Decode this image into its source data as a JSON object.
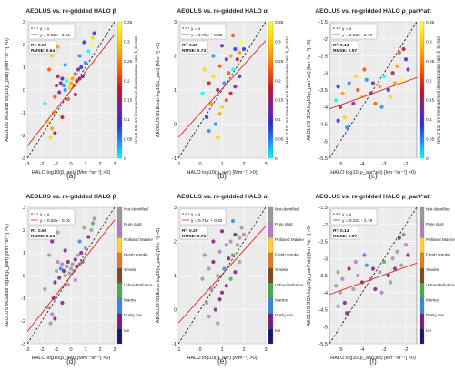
{
  "figure": {
    "colorbar_ticks": [
      "0.35",
      "0.3",
      "0.25",
      "0.2",
      "0.15",
      "0.1",
      "0.05",
      "0"
    ],
    "colorbar_title": "HALO 532 nm linear aerosol depolarization ratio δ_lin,532",
    "aerosol_classes": [
      "Not identified",
      "Pure dust",
      "Polluted Marine",
      "Fresh smoke",
      "Smoke",
      "Urban/Pollution",
      "Marine",
      "Dusty mix",
      "Ice"
    ],
    "aerosol_colors": [
      "#9a9a9a",
      "#b07cc6",
      "#ffcf33",
      "#e07b21",
      "#7a4b1c",
      "#4ea94d",
      "#3a86d8",
      "#7b1e7a",
      "#16166e"
    ]
  },
  "chart_data": [
    {
      "type": "scatter",
      "label": "(a)",
      "title": "AEOLUS vs. re-gridded HALO β",
      "xlabel": "HALO log10(β_aer) [Mm⁻¹sr⁻¹] >0)",
      "ylabel": "AEOLUS MLEsub log10(β_part) [Mm⁻¹sr⁻¹] >0)",
      "xlim": [
        -3,
        3
      ],
      "ylim": [
        -3,
        3
      ],
      "xticks": [
        "-3",
        "-2",
        "-1",
        "0",
        "1",
        "2",
        "3"
      ],
      "yticks": [
        "-3",
        "-2",
        "-1",
        "0",
        "1",
        "2",
        "3"
      ],
      "legend": [
        "y = x",
        "y = 0.82x - 0.01"
      ],
      "fit": {
        "slope": 0.82,
        "intercept": -0.01
      },
      "stats": [
        "R²: 0.60",
        "RMSE: 0.64"
      ],
      "color_mode": "depol",
      "points": [
        [
          -1.8,
          -0.6
        ],
        [
          -1.6,
          -1.4
        ],
        [
          -1.4,
          -2.1
        ],
        [
          -1.3,
          -1.7
        ],
        [
          -1.2,
          -1.0
        ],
        [
          -1.1,
          -0.3
        ],
        [
          -1.0,
          0.2
        ],
        [
          -0.9,
          0.6
        ],
        [
          -0.8,
          -0.1
        ],
        [
          -0.7,
          0.3
        ],
        [
          -0.6,
          0.5
        ],
        [
          -0.5,
          0.2
        ],
        [
          -0.4,
          0.0
        ],
        [
          -0.3,
          0.4
        ],
        [
          -0.2,
          0.6
        ],
        [
          -0.1,
          0.1
        ],
        [
          0.0,
          0.3
        ],
        [
          0.1,
          0.5
        ],
        [
          0.2,
          0.2
        ],
        [
          0.3,
          0.7
        ],
        [
          0.4,
          0.4
        ],
        [
          0.5,
          0.9
        ],
        [
          0.6,
          0.5
        ],
        [
          0.7,
          1.0
        ],
        [
          0.8,
          0.6
        ],
        [
          1.0,
          1.2
        ],
        [
          1.2,
          1.7
        ],
        [
          1.4,
          2.0
        ],
        [
          1.5,
          2.3
        ],
        [
          -1.3,
          1.5
        ],
        [
          -0.9,
          1.9
        ],
        [
          -1.5,
          0.9
        ],
        [
          -0.2,
          -0.4
        ],
        [
          0.3,
          -0.2
        ],
        [
          -0.6,
          -1.2
        ],
        [
          -1.1,
          -1.9
        ],
        [
          0.9,
          2.1
        ],
        [
          1.6,
          2.5
        ],
        [
          -0.4,
          1.1
        ],
        [
          0.6,
          1.5
        ]
      ]
    },
    {
      "type": "scatter",
      "label": "(b)",
      "title": "AEOLUS vs. re-gridded HALO α",
      "xlabel": "HALO log10(α_aer) [Mm⁻¹] >0)",
      "ylabel": "AEOLUS MLEsub log10(α_part) [Mm⁻¹] >0)",
      "xlim": [
        -1,
        3
      ],
      "ylim": [
        -1,
        3
      ],
      "xticks": [
        "-1",
        "0",
        "1",
        "2",
        "3"
      ],
      "yticks": [
        "-1",
        "0",
        "1",
        "2",
        "3"
      ],
      "legend": [
        "y = x",
        "y = 0.71x + 0.32"
      ],
      "fit": {
        "slope": 0.71,
        "intercept": 0.32
      },
      "stats": [
        "R²: 0.25",
        "RMSE: 0.73"
      ],
      "color_mode": "depol",
      "points": [
        [
          0.1,
          0.9
        ],
        [
          0.3,
          0.2
        ],
        [
          0.4,
          1.2
        ],
        [
          0.5,
          0.6
        ],
        [
          0.6,
          1.4
        ],
        [
          0.7,
          0.0
        ],
        [
          0.8,
          1.0
        ],
        [
          0.9,
          1.7
        ],
        [
          1.0,
          0.5
        ],
        [
          1.1,
          1.2
        ],
        [
          1.2,
          1.9
        ],
        [
          1.3,
          1.5
        ],
        [
          1.4,
          2.0
        ],
        [
          1.5,
          1.6
        ],
        [
          1.6,
          2.2
        ],
        [
          1.7,
          1.9
        ],
        [
          1.8,
          2.1
        ],
        [
          1.9,
          2.4
        ],
        [
          2.0,
          2.2
        ],
        [
          1.6,
          1.1
        ],
        [
          1.2,
          0.7
        ],
        [
          0.8,
          -0.4
        ],
        [
          0.4,
          -0.2
        ],
        [
          1.0,
          2.3
        ],
        [
          1.5,
          2.6
        ],
        [
          0.2,
          1.6
        ],
        [
          0.6,
          2.0
        ],
        [
          1.8,
          1.4
        ],
        [
          1.4,
          0.9
        ],
        [
          0.9,
          0.3
        ]
      ]
    },
    {
      "type": "scatter",
      "label": "(c)",
      "title": "AEOLUS vs. re-gridded HALO ρ_part^att",
      "xlabel": "HALO log10(ρ_aer^att) [km⁻¹sr⁻¹] >0)",
      "ylabel": "AEOLUS SCA log10(ρ_part^att) [km⁻¹sr⁻¹] >0)",
      "xlim": [
        -5.5,
        -1.5
      ],
      "ylim": [
        -5.5,
        -1.5
      ],
      "xticks": [
        "-5",
        "-4",
        "-3",
        "-2"
      ],
      "yticks": [
        "-5.5",
        "-5",
        "-4.5",
        "-4",
        "-3.5",
        "-3",
        "-2.5",
        "-2",
        "-1.5"
      ],
      "legend": [
        "y = x",
        "y = 0.23x - 2.79"
      ],
      "fit": {
        "slope": 0.23,
        "intercept": -2.79
      },
      "stats": [
        "R²: 0.14",
        "RMSE: 0.97"
      ],
      "color_mode": "depol",
      "points": [
        [
          -5.2,
          -3.8
        ],
        [
          -5.1,
          -3.4
        ],
        [
          -5.0,
          -4.0
        ],
        [
          -4.9,
          -3.6
        ],
        [
          -4.8,
          -4.3
        ],
        [
          -4.6,
          -3.3
        ],
        [
          -4.4,
          -3.9
        ],
        [
          -4.2,
          -3.5
        ],
        [
          -4.0,
          -3.7
        ],
        [
          -3.8,
          -3.2
        ],
        [
          -3.6,
          -3.6
        ],
        [
          -3.4,
          -3.9
        ],
        [
          -3.2,
          -3.4
        ],
        [
          -3.0,
          -3.1
        ],
        [
          -2.8,
          -3.5
        ],
        [
          -2.6,
          -3.0
        ],
        [
          -2.4,
          -2.8
        ],
        [
          -2.2,
          -3.2
        ],
        [
          -2.0,
          -2.6
        ],
        [
          -1.9,
          -2.9
        ],
        [
          -2.3,
          -2.4
        ],
        [
          -2.7,
          -3.7
        ],
        [
          -3.1,
          -4.0
        ],
        [
          -3.5,
          -3.3
        ],
        [
          -3.9,
          -2.9
        ],
        [
          -4.3,
          -3.1
        ],
        [
          -4.7,
          -4.6
        ],
        [
          -5.1,
          -4.4
        ],
        [
          -2.1,
          -2.3
        ],
        [
          -2.5,
          -3.3
        ]
      ]
    },
    {
      "type": "scatter",
      "label": "(d)",
      "title": "AEOLUS vs. re-gridded HALO β",
      "xlabel": "HALO log10(β_aer) [Mm⁻¹sr⁻¹] >0)",
      "ylabel": "AEOLUS MLEsub log10(β_part) [Mm⁻¹sr⁻¹] >0)",
      "xlim": [
        -3,
        3
      ],
      "ylim": [
        -3,
        3
      ],
      "xticks": [
        "-3",
        "-2",
        "-1",
        "0",
        "1",
        "2",
        "3"
      ],
      "yticks": [
        "-3",
        "-2",
        "-1",
        "0",
        "1",
        "2",
        "3"
      ],
      "legend": [
        "y = x",
        "y = 0.82x - 0.01"
      ],
      "fit": {
        "slope": 0.82,
        "intercept": -0.01
      },
      "stats": [
        "R²: 0.60",
        "RMSE: 0.64"
      ],
      "color_mode": "class",
      "points": [
        [
          -1.8,
          -0.6
        ],
        [
          -1.6,
          -1.4
        ],
        [
          -1.4,
          -2.1
        ],
        [
          -1.3,
          -1.7
        ],
        [
          -1.2,
          -1.0
        ],
        [
          -1.1,
          -0.3
        ],
        [
          -1.0,
          0.2
        ],
        [
          -0.9,
          0.6
        ],
        [
          -0.8,
          -0.1
        ],
        [
          -0.7,
          0.3
        ],
        [
          -0.6,
          0.5
        ],
        [
          -0.5,
          0.2
        ],
        [
          -0.4,
          0.0
        ],
        [
          -0.3,
          0.4
        ],
        [
          -0.2,
          0.6
        ],
        [
          -0.1,
          0.1
        ],
        [
          0.0,
          0.3
        ],
        [
          0.1,
          0.5
        ],
        [
          0.2,
          0.2
        ],
        [
          0.3,
          0.7
        ],
        [
          0.4,
          0.4
        ],
        [
          0.5,
          0.9
        ],
        [
          0.6,
          0.5
        ],
        [
          0.7,
          1.0
        ],
        [
          0.8,
          0.6
        ],
        [
          1.0,
          1.2
        ],
        [
          1.2,
          1.7
        ],
        [
          1.4,
          2.0
        ],
        [
          1.5,
          2.3
        ],
        [
          -1.3,
          1.5
        ],
        [
          -0.9,
          1.9
        ],
        [
          -1.5,
          0.9
        ],
        [
          -0.2,
          -0.4
        ],
        [
          0.3,
          -0.2
        ],
        [
          -0.6,
          -1.2
        ],
        [
          -1.1,
          -1.9
        ],
        [
          0.9,
          2.1
        ],
        [
          1.6,
          2.5
        ],
        [
          -0.4,
          1.1
        ],
        [
          0.6,
          1.5
        ]
      ]
    },
    {
      "type": "scatter",
      "label": "(e)",
      "title": "AEOLUS vs. re-gridded HALO α",
      "xlabel": "HALO log10(α_aer) [Mm⁻¹] >0)",
      "ylabel": "AEOLUS MLEsub log10(α_part) [Mm⁻¹] >0)",
      "xlim": [
        -1,
        3
      ],
      "ylim": [
        -1,
        3
      ],
      "xticks": [
        "-1",
        "0",
        "1",
        "2",
        "3"
      ],
      "yticks": [
        "-1",
        "0",
        "1",
        "2",
        "3"
      ],
      "legend": [
        "y = x",
        "y = 0.71x + 0.32"
      ],
      "fit": {
        "slope": 0.71,
        "intercept": 0.32
      },
      "stats": [
        "R²: 0.25",
        "RMSE: 0.73"
      ],
      "color_mode": "class",
      "points": [
        [
          0.1,
          0.9
        ],
        [
          0.3,
          0.2
        ],
        [
          0.4,
          1.2
        ],
        [
          0.5,
          0.6
        ],
        [
          0.6,
          1.4
        ],
        [
          0.7,
          0.0
        ],
        [
          0.8,
          1.0
        ],
        [
          0.9,
          1.7
        ],
        [
          1.0,
          0.5
        ],
        [
          1.1,
          1.2
        ],
        [
          1.2,
          1.9
        ],
        [
          1.3,
          1.5
        ],
        [
          1.4,
          2.0
        ],
        [
          1.5,
          1.6
        ],
        [
          1.6,
          2.2
        ],
        [
          1.7,
          1.9
        ],
        [
          1.8,
          2.1
        ],
        [
          1.9,
          2.4
        ],
        [
          2.0,
          2.2
        ],
        [
          1.6,
          1.1
        ],
        [
          1.2,
          0.7
        ],
        [
          0.8,
          -0.4
        ],
        [
          0.4,
          -0.2
        ],
        [
          1.0,
          2.3
        ],
        [
          1.5,
          2.6
        ],
        [
          0.2,
          1.6
        ],
        [
          0.6,
          2.0
        ],
        [
          1.8,
          1.4
        ],
        [
          1.4,
          0.9
        ],
        [
          0.9,
          0.3
        ]
      ]
    },
    {
      "type": "scatter",
      "label": "(f)",
      "title": "AEOLUS vs. re-gridded HALO ρ_part^att",
      "xlabel": "HALO log10(ρ_aer^att) [km⁻¹sr⁻¹] >0)",
      "ylabel": "AEOLUS SCA log10(ρ_part^att) [km⁻¹sr⁻¹] >0)",
      "xlim": [
        -5.5,
        -1.5
      ],
      "ylim": [
        -5.5,
        -1.5
      ],
      "xticks": [
        "-5",
        "-4",
        "-3",
        "-2"
      ],
      "yticks": [
        "-5.5",
        "-5",
        "-4.5",
        "-4",
        "-3.5",
        "-3",
        "-2.5",
        "-2",
        "-1.5"
      ],
      "legend": [
        "y = x",
        "y = 0.23x - 2.79"
      ],
      "fit": {
        "slope": 0.23,
        "intercept": -2.79
      },
      "stats": [
        "R²: 0.14",
        "RMSE: 0.97"
      ],
      "color_mode": "class",
      "points": [
        [
          -5.2,
          -3.8
        ],
        [
          -5.1,
          -3.4
        ],
        [
          -5.0,
          -4.0
        ],
        [
          -4.9,
          -3.6
        ],
        [
          -4.8,
          -4.3
        ],
        [
          -4.6,
          -3.3
        ],
        [
          -4.4,
          -3.9
        ],
        [
          -4.2,
          -3.5
        ],
        [
          -4.0,
          -3.7
        ],
        [
          -3.8,
          -3.2
        ],
        [
          -3.6,
          -3.6
        ],
        [
          -3.4,
          -3.9
        ],
        [
          -3.2,
          -3.4
        ],
        [
          -3.0,
          -3.1
        ],
        [
          -2.8,
          -3.5
        ],
        [
          -2.6,
          -3.0
        ],
        [
          -2.4,
          -2.8
        ],
        [
          -2.2,
          -3.2
        ],
        [
          -2.0,
          -2.6
        ],
        [
          -1.9,
          -2.9
        ],
        [
          -2.3,
          -2.4
        ],
        [
          -2.7,
          -3.7
        ],
        [
          -3.1,
          -4.0
        ],
        [
          -3.5,
          -3.3
        ],
        [
          -3.9,
          -2.9
        ],
        [
          -4.3,
          -3.1
        ],
        [
          -4.7,
          -4.6
        ],
        [
          -5.1,
          -4.4
        ],
        [
          -2.1,
          -2.3
        ],
        [
          -2.5,
          -3.3
        ]
      ]
    }
  ]
}
